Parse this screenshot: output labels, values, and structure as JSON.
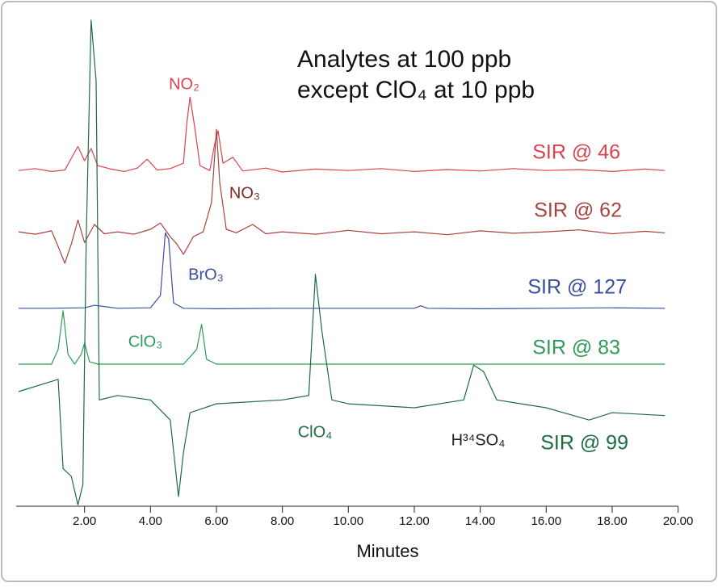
{
  "chart_data": {
    "type": "line",
    "title": "Analytes  at 100 ppb",
    "subtitle": "except ClO₄ at 10 ppb",
    "x_label": "Minutes",
    "xlim": [
      0,
      20
    ],
    "ylim": [
      0,
      100
    ],
    "xticks": [
      {
        "value": 2,
        "label": "2.00"
      },
      {
        "value": 4,
        "label": "4.00"
      },
      {
        "value": 6,
        "label": "6.00"
      },
      {
        "value": 8,
        "label": "8.00"
      },
      {
        "value": 10,
        "label": "10.00"
      },
      {
        "value": 12,
        "label": "12.00"
      },
      {
        "value": 14,
        "label": "14.00"
      },
      {
        "value": 16,
        "label": "16.00"
      },
      {
        "value": 18,
        "label": "18.00"
      },
      {
        "value": 20,
        "label": "20.00"
      }
    ],
    "series": [
      {
        "name": "SIR @ 46",
        "color": "#d9434e",
        "x": [
          0,
          0.5,
          1,
          1.4,
          1.6,
          1.8,
          2.0,
          2.2,
          2.4,
          2.8,
          3.2,
          3.6,
          3.9,
          4.2,
          4.6,
          5.0,
          5.1,
          5.2,
          5.35,
          5.5,
          5.8,
          5.95,
          6.05,
          6.2,
          6.5,
          6.8,
          7.5,
          8,
          9,
          10,
          11,
          12,
          13,
          14,
          15,
          16,
          17,
          18,
          19,
          19.6
        ],
        "values": [
          68.5,
          68.9,
          68.3,
          68.6,
          71,
          73.4,
          70.5,
          73,
          69.5,
          68.8,
          68.3,
          69,
          70.8,
          68.6,
          68.9,
          70,
          78,
          83.5,
          77,
          69.5,
          68.5,
          74,
          76.6,
          70,
          71.2,
          68.4,
          69,
          68.2,
          68.8,
          68.5,
          68.9,
          68.3,
          68.7,
          68.4,
          68.9,
          68.5,
          68.7,
          68.3,
          68.8,
          68.5
        ]
      },
      {
        "name": "SIR @ 62",
        "color": "#a8433e",
        "x": [
          0,
          0.5,
          1,
          1.2,
          1.4,
          1.6,
          1.8,
          2.0,
          2.3,
          2.6,
          3.0,
          3.5,
          4.0,
          4.3,
          4.6,
          4.8,
          5.0,
          5.3,
          5.6,
          5.85,
          6.0,
          6.1,
          6.3,
          6.6,
          7.1,
          7.5,
          8,
          9,
          10,
          11,
          12,
          13,
          14,
          15,
          16,
          17,
          18,
          19,
          19.6
        ],
        "values": [
          56,
          55.5,
          56.2,
          53,
          49.6,
          53.5,
          58.4,
          53.8,
          57.5,
          55.6,
          56,
          55.5,
          56.5,
          57.8,
          55,
          53.5,
          51.4,
          55,
          56,
          62,
          76.9,
          66,
          56.5,
          55.8,
          57.5,
          55.6,
          56,
          55.5,
          56.3,
          55.6,
          56,
          55.4,
          56.2,
          55.7,
          56,
          56.4,
          55.6,
          56.1,
          55.8
        ]
      },
      {
        "name": "SIR @ 127",
        "color": "#3a4f9c",
        "x": [
          0,
          1,
          2,
          2.3,
          3,
          4,
          4.3,
          4.45,
          4.55,
          4.7,
          5,
          6,
          8,
          10,
          12,
          12.2,
          12.4,
          14,
          16,
          18,
          19.6
        ],
        "values": [
          40.4,
          40.4,
          40.5,
          41,
          40.4,
          40.5,
          43,
          55.8,
          54.5,
          41.5,
          40.4,
          40.3,
          40.4,
          40.4,
          40.4,
          40.9,
          40.4,
          40.3,
          40.4,
          40.5,
          40.4
        ]
      },
      {
        "name": "SIR @ 83",
        "color": "#2f9a5a",
        "x": [
          0,
          1.0,
          1.2,
          1.35,
          1.5,
          1.7,
          1.9,
          2.0,
          2.15,
          2.4,
          3,
          4,
          5,
          5.4,
          5.55,
          5.7,
          6,
          8,
          10,
          12,
          14,
          16,
          18,
          19.6
        ],
        "values": [
          29,
          29,
          32,
          39.9,
          31,
          29,
          31,
          33.3,
          29.5,
          29,
          29,
          29,
          29,
          32,
          37.1,
          30,
          29,
          29,
          29,
          29,
          29,
          29,
          29,
          29
        ]
      },
      {
        "name": "SIR @ 99",
        "color": "#1e6b42",
        "x": [
          0,
          1.2,
          1.35,
          1.6,
          1.8,
          1.95,
          2.05,
          2.2,
          2.35,
          2.45,
          3,
          4,
          4.6,
          4.85,
          5.0,
          5.2,
          6,
          8,
          8.8,
          9.0,
          9.2,
          9.5,
          10,
          12,
          13.5,
          13.8,
          14.1,
          14.5,
          16,
          17.3,
          18,
          19.6
        ],
        "values": [
          23.4,
          25.9,
          7.7,
          6.1,
          0.3,
          4.4,
          53.9,
          99.2,
          86.8,
          21.7,
          22.6,
          21.7,
          17.6,
          2,
          11,
          19.1,
          20.9,
          21.7,
          22.6,
          47.3,
          35.7,
          21.7,
          20.9,
          20.1,
          21.7,
          28.8,
          27.5,
          21.7,
          20.1,
          17.6,
          19.1,
          18.5
        ]
      }
    ],
    "annotations": [
      {
        "text": "NO₂",
        "color": "#d9434e"
      },
      {
        "text": "NO₃",
        "color": "#7a2a28"
      },
      {
        "text": "BrO₃",
        "color": "#3a4f9c"
      },
      {
        "text": "ClO₃",
        "color": "#2f9a5a"
      },
      {
        "text": "ClO₄",
        "color": "#1e6b42"
      },
      {
        "text": "H³⁴SO₄",
        "color": "#222222"
      }
    ]
  }
}
